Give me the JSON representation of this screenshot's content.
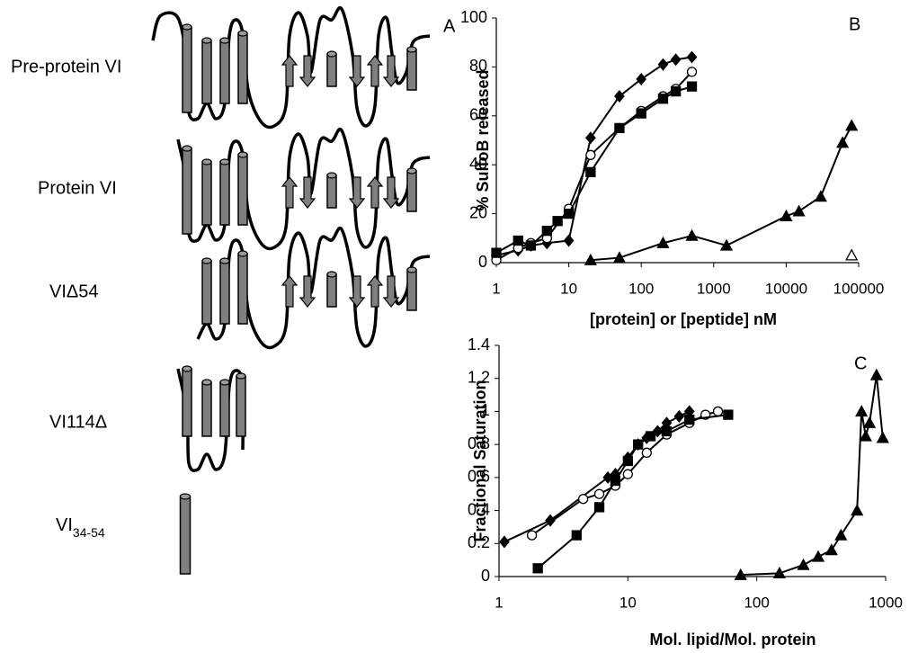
{
  "panel_a": {
    "label": "A",
    "constructs": [
      {
        "name": "Pre-protein VI"
      },
      {
        "name": "Protein VI"
      },
      {
        "name": "VIΔ54"
      },
      {
        "name": "VI114Δ"
      },
      {
        "name": {
          "base": "VI",
          "subscript": "34-54"
        }
      }
    ]
  },
  "chart_data": [
    {
      "type": "line",
      "panel_label": "B",
      "y_label": "% SulfoB released",
      "x_label": "[protein] or [peptide] nM",
      "xlog": true,
      "xlim": [
        1,
        100000
      ],
      "ylim": [
        0,
        100
      ],
      "xticks": [
        1,
        10,
        100,
        1000,
        10000,
        100000
      ],
      "yticks": [
        0,
        20,
        40,
        60,
        80,
        100
      ],
      "series": [
        {
          "color": "#000000",
          "marker": "diamond",
          "x": [
            1,
            2,
            3,
            5,
            10,
            20,
            50,
            100,
            200,
            300,
            500
          ],
          "values": [
            3,
            5,
            7,
            8,
            9,
            51,
            68,
            75,
            81,
            83,
            84
          ]
        },
        {
          "color": "#000000",
          "marker": "circle-open",
          "x": [
            1,
            2,
            3,
            5,
            10,
            20,
            50,
            100,
            200,
            300,
            500
          ],
          "values": [
            1,
            6,
            8,
            10,
            22,
            44,
            55,
            62,
            68,
            71,
            78
          ]
        },
        {
          "color": "#000000",
          "marker": "square",
          "x": [
            1,
            2,
            3,
            5,
            7,
            10,
            20,
            50,
            100,
            200,
            300,
            500
          ],
          "values": [
            4,
            9,
            7,
            13,
            17,
            20,
            37,
            55,
            61,
            67,
            70,
            72
          ]
        },
        {
          "color": "#000000",
          "marker": "triangle",
          "x": [
            20,
            50,
            200,
            500,
            1500,
            10000,
            15000,
            30000,
            60000,
            80000
          ],
          "values": [
            1,
            2,
            8,
            11,
            7,
            19,
            21,
            27,
            49,
            56
          ]
        },
        {
          "color": "#000000",
          "marker": "triangle-open",
          "x": [
            80000
          ],
          "values": [
            3
          ]
        }
      ]
    },
    {
      "type": "line",
      "panel_label": "C",
      "y_label": "Fractional Saturation",
      "x_label": "Mol. lipid/Mol. protein",
      "xlog": true,
      "xlim": [
        1,
        1000
      ],
      "ylim": [
        0,
        1.4
      ],
      "xticks": [
        1,
        10,
        100,
        1000
      ],
      "yticks": [
        0,
        0.2,
        0.4,
        0.6,
        0.8,
        1,
        1.2,
        1.4
      ],
      "series": [
        {
          "color": "#000000",
          "marker": "diamond",
          "x": [
            1.1,
            2.5,
            7,
            8,
            10,
            12,
            14,
            17,
            20,
            25,
            30
          ],
          "values": [
            0.21,
            0.34,
            0.6,
            0.62,
            0.72,
            0.8,
            0.84,
            0.88,
            0.93,
            0.97,
            1.0
          ]
        },
        {
          "color": "#000000",
          "marker": "circle-open",
          "x": [
            1.8,
            4.5,
            6,
            8,
            10,
            14,
            20,
            30,
            40,
            50
          ],
          "values": [
            0.25,
            0.47,
            0.5,
            0.55,
            0.62,
            0.75,
            0.86,
            0.93,
            0.98,
            1.0
          ]
        },
        {
          "color": "#000000",
          "marker": "square",
          "x": [
            2,
            4,
            6,
            8,
            10,
            12,
            15,
            20,
            30,
            60
          ],
          "values": [
            0.05,
            0.25,
            0.42,
            0.58,
            0.7,
            0.8,
            0.85,
            0.88,
            0.95,
            0.98
          ]
        },
        {
          "color": "#000000",
          "marker": "triangle",
          "x": [
            75,
            150,
            230,
            300,
            380,
            450,
            600,
            650,
            700,
            750,
            850,
            950
          ],
          "values": [
            0.01,
            0.02,
            0.07,
            0.12,
            0.16,
            0.25,
            0.4,
            1.0,
            0.85,
            0.93,
            1.22,
            0.84
          ]
        }
      ]
    }
  ]
}
